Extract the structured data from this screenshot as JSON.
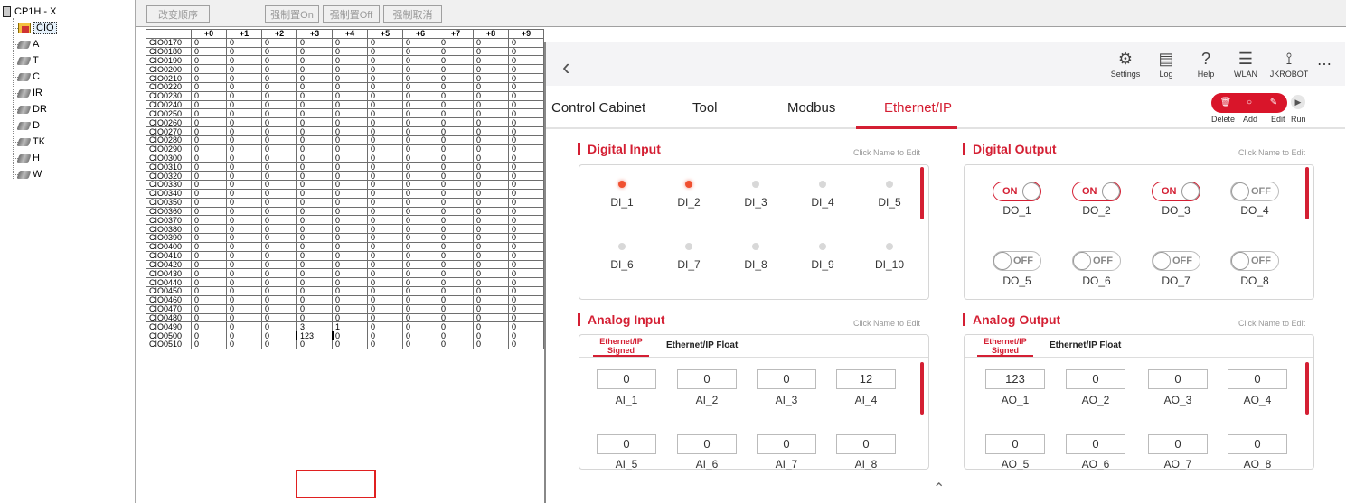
{
  "tree": {
    "root": "CP1H - X",
    "items": [
      "CIO",
      "A",
      "T",
      "C",
      "IR",
      "DR",
      "D",
      "TK",
      "H",
      "W"
    ]
  },
  "toolbar": {
    "change_order": "改变顺序",
    "force_on": "强制置On",
    "force_off": "强制置Off",
    "force_cancel": "强制取消"
  },
  "grid": {
    "headers": [
      "+0",
      "+1",
      "+2",
      "+3",
      "+4",
      "+5",
      "+6",
      "+7",
      "+8",
      "+9"
    ],
    "rows": [
      "CIO0170",
      "CIO0180",
      "CIO0190",
      "CIO0200",
      "CIO0210",
      "CIO0220",
      "CIO0230",
      "CIO0240",
      "CIO0250",
      "CIO0260",
      "CIO0270",
      "CIO0280",
      "CIO0290",
      "CIO0300",
      "CIO0310",
      "CIO0320",
      "CIO0330",
      "CIO0340",
      "CIO0350",
      "CIO0360",
      "CIO0370",
      "CIO0380",
      "CIO0390",
      "CIO0400",
      "CIO0410",
      "CIO0420",
      "CIO0430",
      "CIO0440",
      "CIO0450",
      "CIO0460",
      "CIO0470",
      "CIO0480",
      "CIO0490",
      "CIO0500",
      "CIO0510"
    ],
    "special": {
      "CIO0490": [
        "0",
        "0",
        "0",
        "3",
        "1",
        "0",
        "0",
        "0",
        "0",
        "0"
      ],
      "CIO0500": [
        "0",
        "0",
        "0",
        "123",
        "0",
        "0",
        "0",
        "0",
        "0",
        "0"
      ]
    }
  },
  "header": {
    "icons": [
      {
        "label": "Settings",
        "icon": "gear-icon"
      },
      {
        "label": "Log",
        "icon": "calendar-icon"
      },
      {
        "label": "Help",
        "icon": "help-icon"
      },
      {
        "label": "WLAN",
        "icon": "wifi-icon"
      },
      {
        "label": "JKROBOT",
        "icon": "robot-arm-icon"
      }
    ],
    "more": "⋯"
  },
  "tabs": [
    "Control Cabinet",
    "Tool",
    "Modbus",
    "Ethernet/IP"
  ],
  "actions": [
    "Delete",
    "Add",
    "Edit",
    "Run"
  ],
  "digital_input": {
    "title": "Digital Input",
    "click_edit": "Click Name to Edit",
    "items": [
      {
        "name": "DI_1",
        "on": true
      },
      {
        "name": "DI_2",
        "on": true
      },
      {
        "name": "DI_3",
        "on": false
      },
      {
        "name": "DI_4",
        "on": false
      },
      {
        "name": "DI_5",
        "on": false
      },
      {
        "name": "DI_6",
        "on": false
      },
      {
        "name": "DI_7",
        "on": false
      },
      {
        "name": "DI_8",
        "on": false
      },
      {
        "name": "DI_9",
        "on": false
      },
      {
        "name": "DI_10",
        "on": false
      }
    ]
  },
  "digital_output": {
    "title": "Digital Output",
    "click_edit": "Click Name to Edit",
    "on_text": "ON",
    "off_text": "OFF",
    "items": [
      {
        "name": "DO_1",
        "on": true
      },
      {
        "name": "DO_2",
        "on": true
      },
      {
        "name": "DO_3",
        "on": true
      },
      {
        "name": "DO_4",
        "on": false
      },
      {
        "name": "DO_5",
        "on": false
      },
      {
        "name": "DO_6",
        "on": false
      },
      {
        "name": "DO_7",
        "on": false
      },
      {
        "name": "DO_8",
        "on": false
      }
    ]
  },
  "analog_input": {
    "title": "Analog Input",
    "click_edit": "Click Name to Edit",
    "subtab_signed": "Ethernet/IP Signed",
    "subtab_float": "Ethernet/IP Float",
    "items": [
      {
        "name": "AI_1",
        "value": "0"
      },
      {
        "name": "AI_2",
        "value": "0"
      },
      {
        "name": "AI_3",
        "value": "0"
      },
      {
        "name": "AI_4",
        "value": "12"
      },
      {
        "name": "AI_5",
        "value": "0"
      },
      {
        "name": "AI_6",
        "value": "0"
      },
      {
        "name": "AI_7",
        "value": "0"
      },
      {
        "name": "AI_8",
        "value": "0"
      }
    ]
  },
  "analog_output": {
    "title": "Analog Output",
    "click_edit": "Click Name to Edit",
    "subtab_signed": "Ethernet/IP Signed",
    "subtab_float": "Ethernet/IP Float",
    "items": [
      {
        "name": "AO_1",
        "value": "123"
      },
      {
        "name": "AO_2",
        "value": "0"
      },
      {
        "name": "AO_3",
        "value": "0"
      },
      {
        "name": "AO_4",
        "value": "0"
      },
      {
        "name": "AO_5",
        "value": "0"
      },
      {
        "name": "AO_6",
        "value": "0"
      },
      {
        "name": "AO_7",
        "value": "0"
      },
      {
        "name": "AO_8",
        "value": "0"
      }
    ]
  },
  "colors": {
    "accent": "#d41f33",
    "led_on": "#f05030"
  }
}
